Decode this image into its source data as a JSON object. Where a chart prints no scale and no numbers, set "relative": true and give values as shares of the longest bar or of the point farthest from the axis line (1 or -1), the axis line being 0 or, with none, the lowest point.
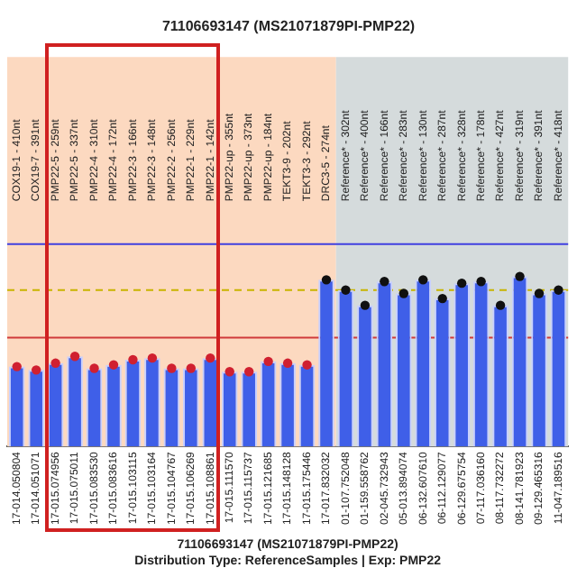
{
  "chart_data": {
    "type": "bar",
    "relative": true,
    "title": "71106693147 (MS21071879PI-PMP22)",
    "subtitle": "Distribution Type: ReferenceSamples | Exp: PMP22",
    "categories": [
      "17-014.050804",
      "17-014.051071",
      "17-015.074956",
      "17-015.075011",
      "17-015.083530",
      "17-015.083616",
      "17-015.103115",
      "17-015.103164",
      "17-015.104767",
      "17-015.106269",
      "17-015.108861",
      "17-015.111570",
      "17-015.115737",
      "17-015.121685",
      "17-015.148128",
      "17-015.175446",
      "17-017.832032",
      "01-107.752048",
      "01-159.558762",
      "02-045.732943",
      "05-013.894074",
      "06-132.607610",
      "06-112.129077",
      "06-129.675754",
      "07-117.036160",
      "08-117.732272",
      "08-141.781923",
      "09-129.465316",
      "11-047.189516"
    ],
    "series": [
      {
        "color": "#3f5fe8",
        "values": [
          0.47,
          0.45,
          0.49,
          0.53,
          0.46,
          0.48,
          0.51,
          0.52,
          0.46,
          0.46,
          0.52,
          0.44,
          0.44,
          0.5,
          0.49,
          0.48,
          0.98,
          0.92,
          0.83,
          0.97,
          0.9,
          0.98,
          0.87,
          0.96,
          0.97,
          0.83,
          1,
          0.9,
          0.92
        ]
      },
      {
        "type": "scatter",
        "colors": [
          "#d02030",
          "#d02030",
          "#d02030",
          "#d02030",
          "#d02030",
          "#d02030",
          "#d02030",
          "#d02030",
          "#d02030",
          "#d02030",
          "#d02030",
          "#d02030",
          "#d02030",
          "#d02030",
          "#d02030",
          "#d02030",
          "#101010",
          "#101010",
          "#101010",
          "#101010",
          "#101010",
          "#101010",
          "#101010",
          "#101010",
          "#101010",
          "#101010",
          "#101010",
          "#101010",
          "#101010"
        ],
        "values": [
          0.47,
          0.45,
          0.49,
          0.53,
          0.46,
          0.48,
          0.51,
          0.52,
          0.46,
          0.46,
          0.52,
          0.44,
          0.44,
          0.5,
          0.49,
          0.48,
          0.98,
          0.92,
          0.83,
          0.97,
          0.9,
          0.98,
          0.87,
          0.96,
          0.97,
          0.83,
          1,
          0.9,
          0.92
        ]
      }
    ],
    "marker": "circle",
    "legend": false,
    "grid": false,
    "bands": [
      {
        "axis": "x",
        "from": "17-014.050804",
        "to": "17-017.832032",
        "color": "#fcd9c0"
      },
      {
        "axis": "x",
        "from": "01-107.752048",
        "to": "11-047.189516",
        "color": "#d5dbdc"
      }
    ],
    "ref_lines": [
      {
        "axis": "y",
        "value": 1.19,
        "color": "#4040e0"
      },
      {
        "axis": "y",
        "value": 0.64,
        "color": "#d03a3a"
      },
      {
        "axis": "y",
        "value": 0.92,
        "color": "#c8b400",
        "line_style": "dashed"
      }
    ],
    "annotations": [
      "COX19-1 - 410nt",
      "COX19-7 - 391nt",
      "PMP22-5 - 259nt",
      "PMP22-5 - 337nt",
      "PMP22-4 - 310nt",
      "PMP22-4 - 172nt",
      "PMP22-3 - 166nt",
      "PMP22-3 - 148nt",
      "PMP22-2 - 256nt",
      "PMP22-1 - 229nt",
      "PMP22-1 - 142nt",
      "PMP22-up - 355nt",
      "PMP22-up - 373nt",
      "PMP22-up - 184nt",
      "TEKT3-9 - 202nt",
      "TEKT3-3 - 292nt",
      "DRC3-5 - 274nt",
      "Reference* - 302nt",
      "Reference* - 400nt",
      "Reference* - 166nt",
      "Reference* - 283nt",
      "Reference* - 130nt",
      "Reference* - 287nt",
      "Reference* - 328nt",
      "Reference* - 178nt",
      "Reference* - 427nt",
      "Reference* - 319nt",
      "Reference* - 391nt",
      "Reference* - 418nt",
      "71106693147 (MS21071879PI-PMP22)"
    ]
  }
}
